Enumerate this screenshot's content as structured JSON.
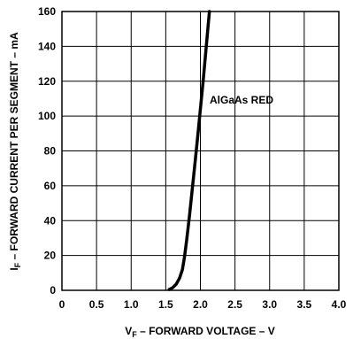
{
  "chart_data": {
    "type": "line",
    "title": "",
    "xlabel": {
      "main": "V",
      "sub": "F",
      "rest": " – FORWARD VOLTAGE – V"
    },
    "ylabel": {
      "main": "I",
      "sub": "F",
      "rest": " – FORWARD CURRENT PER SEGMENT – mA"
    },
    "xlim": [
      0,
      4.0
    ],
    "ylim": [
      0,
      160
    ],
    "x_ticks": [
      "0",
      "0.5",
      "1.0",
      "1.5",
      "2.0",
      "2.5",
      "3.0",
      "3.5",
      "4.0"
    ],
    "y_ticks": [
      "0",
      "20",
      "40",
      "60",
      "80",
      "100",
      "120",
      "140",
      "160"
    ],
    "grid": true,
    "series": [
      {
        "annotation": "AlGaAs RED",
        "color": "#000000",
        "points": [
          [
            1.55,
            0.5
          ],
          [
            1.6,
            1.5
          ],
          [
            1.65,
            3.5
          ],
          [
            1.7,
            7
          ],
          [
            1.74,
            12
          ],
          [
            1.77,
            19
          ],
          [
            1.8,
            28
          ],
          [
            1.84,
            42
          ],
          [
            1.88,
            57
          ],
          [
            1.92,
            72
          ],
          [
            1.96,
            88
          ],
          [
            2.0,
            104
          ],
          [
            2.04,
            120
          ],
          [
            2.08,
            138
          ],
          [
            2.13,
            160
          ]
        ]
      }
    ]
  }
}
